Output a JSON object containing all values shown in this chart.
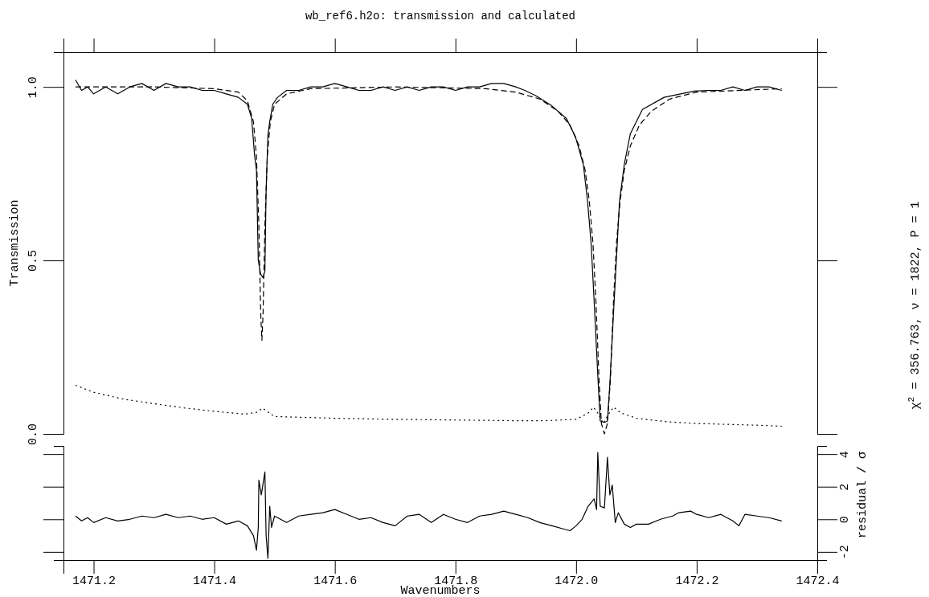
{
  "chart_data": [
    {
      "type": "line",
      "title": "wb_ref6.h2o: transmission and calculated",
      "ylabel": "Transmission",
      "tick_labels": "y",
      "xlim": [
        1471.15,
        1472.4
      ],
      "xticks": [
        {
          "value": 1471.2,
          "label": null
        },
        {
          "value": 1471.4,
          "label": null
        },
        {
          "value": 1471.6,
          "label": null
        },
        {
          "value": 1471.8,
          "label": null
        },
        {
          "value": 1472,
          "label": null
        },
        {
          "value": 1472.2,
          "label": null
        },
        {
          "value": 1472.4,
          "label": null
        }
      ],
      "ylim": [
        0,
        1.1
      ],
      "yticks": [
        {
          "value": 0,
          "label": "0.0"
        },
        {
          "value": 0.5,
          "label": "0.5"
        },
        {
          "value": 1,
          "label": "1.0"
        }
      ],
      "annotations": [
        "χ$^{2}$ = 356.763, ν = 1822, P = 1"
      ],
      "series": [
        {
          "color": "#000000",
          "line_style": "solid",
          "x": [
            1471.17,
            1471.18,
            1471.19,
            1471.2,
            1471.22,
            1471.24,
            1471.26,
            1471.28,
            1471.3,
            1471.32,
            1471.34,
            1471.36,
            1471.38,
            1471.4,
            1471.42,
            1471.44,
            1471.455,
            1471.462,
            1471.467,
            1471.47,
            1471.473,
            1471.477,
            1471.481,
            1471.484,
            1471.486,
            1471.489,
            1471.492,
            1471.497,
            1471.505,
            1471.52,
            1471.54,
            1471.56,
            1471.58,
            1471.6,
            1471.62,
            1471.64,
            1471.66,
            1471.68,
            1471.7,
            1471.72,
            1471.74,
            1471.76,
            1471.78,
            1471.8,
            1471.82,
            1471.84,
            1471.86,
            1471.88,
            1471.9,
            1471.915,
            1471.933,
            1471.958,
            1471.984,
            1471.999,
            1472.012,
            1472.019,
            1472.025,
            1472.03,
            1472.036,
            1472.04,
            1472.047,
            1472.052,
            1472.056,
            1472.062,
            1472.068,
            1472.072,
            1472.08,
            1472.09,
            1472.11,
            1472.146,
            1472.196,
            1472.22,
            1472.24,
            1472.26,
            1472.28,
            1472.3,
            1472.32,
            1472.341
          ],
          "values": [
            1.02,
            0.99,
            1.0,
            0.98,
            1.0,
            0.98,
            1.0,
            1.01,
            0.99,
            1.01,
            1.0,
            1.0,
            0.99,
            0.99,
            0.98,
            0.97,
            0.95,
            0.91,
            0.8,
            0.76,
            0.5,
            0.46,
            0.45,
            0.47,
            0.7,
            0.86,
            0.9,
            0.95,
            0.97,
            0.99,
            0.99,
            1.0,
            1.0,
            1.01,
            1.0,
            0.99,
            0.99,
            1.0,
            0.99,
            1.0,
            0.99,
            1.0,
            1.0,
            0.99,
            1.0,
            1.0,
            1.01,
            1.01,
            1.0,
            0.99,
            0.975,
            0.948,
            0.909,
            0.856,
            0.777,
            0.671,
            0.548,
            0.381,
            0.169,
            0.037,
            0.033,
            0.037,
            0.143,
            0.345,
            0.539,
            0.671,
            0.777,
            0.865,
            0.935,
            0.97,
            0.988,
            0.99,
            0.99,
            1.0,
            0.99,
            1.0,
            1.0,
            0.99
          ]
        },
        {
          "color": "#000000",
          "line_style": "dashed",
          "x": [
            1471.17,
            1471.3,
            1471.4,
            1471.44,
            1471.455,
            1471.465,
            1471.47,
            1471.474,
            1471.477,
            1471.479,
            1471.481,
            1471.484,
            1471.488,
            1471.493,
            1471.5,
            1471.52,
            1471.56,
            1471.7,
            1471.85,
            1471.9,
            1471.94,
            1471.97,
            1471.99,
            1472.005,
            1472.015,
            1472.022,
            1472.028,
            1472.033,
            1472.038,
            1472.042,
            1472.047,
            1472.052,
            1472.057,
            1472.062,
            1472.067,
            1472.073,
            1472.08,
            1472.09,
            1472.105,
            1472.125,
            1472.155,
            1472.2,
            1472.341
          ],
          "values": [
            1.0,
            1.0,
            0.995,
            0.985,
            0.96,
            0.9,
            0.8,
            0.6,
            0.35,
            0.27,
            0.35,
            0.6,
            0.8,
            0.9,
            0.95,
            0.98,
            0.995,
            1.0,
            0.995,
            0.985,
            0.965,
            0.93,
            0.89,
            0.83,
            0.76,
            0.67,
            0.55,
            0.38,
            0.16,
            0.03,
            0.0,
            0.03,
            0.16,
            0.38,
            0.55,
            0.67,
            0.76,
            0.83,
            0.89,
            0.93,
            0.965,
            0.985,
            0.995
          ]
        },
        {
          "color": "#000000",
          "line_style": "dotted",
          "x": [
            1471.17,
            1471.2,
            1471.25,
            1471.3,
            1471.35,
            1471.4,
            1471.45,
            1471.47,
            1471.48,
            1471.49,
            1471.5,
            1471.6,
            1471.7,
            1471.8,
            1471.9,
            1471.95,
            1472.0,
            1472.02,
            1472.029,
            1472.036,
            1472.045,
            1472.055,
            1472.062,
            1472.075,
            1472.1,
            1472.15,
            1472.2,
            1472.3,
            1472.341
          ],
          "values": [
            0.14,
            0.12,
            0.1,
            0.087,
            0.075,
            0.065,
            0.057,
            0.062,
            0.074,
            0.062,
            0.05,
            0.045,
            0.042,
            0.04,
            0.038,
            0.038,
            0.042,
            0.06,
            0.077,
            0.06,
            0.03,
            0.06,
            0.077,
            0.06,
            0.045,
            0.035,
            0.03,
            0.025,
            0.022
          ]
        }
      ]
    },
    {
      "type": "line",
      "xlabel": "Wavenumbers",
      "y2label": "residual / σ",
      "xlim": [
        1471.15,
        1472.4
      ],
      "xticks": [
        1471.2,
        1471.4,
        1471.6,
        1471.8,
        {
          "value": 1472,
          "label": "1472.0"
        },
        1472.2,
        1472.4
      ],
      "y2lim": [
        -2.5,
        4.5
      ],
      "y2ticks": [
        -2,
        0,
        2,
        4
      ],
      "series": [
        {
          "color": "#000000",
          "line_style": "solid",
          "axis": "y2",
          "x": [
            1471.17,
            1471.18,
            1471.19,
            1471.2,
            1471.22,
            1471.24,
            1471.26,
            1471.28,
            1471.3,
            1471.32,
            1471.34,
            1471.36,
            1471.38,
            1471.4,
            1471.42,
            1471.44,
            1471.455,
            1471.465,
            1471.47,
            1471.473,
            1471.474,
            1471.478,
            1471.484,
            1471.486,
            1471.489,
            1471.492,
            1471.495,
            1471.5,
            1471.52,
            1471.54,
            1471.56,
            1471.58,
            1471.6,
            1471.62,
            1471.64,
            1471.66,
            1471.68,
            1471.7,
            1471.72,
            1471.74,
            1471.76,
            1471.78,
            1471.8,
            1471.82,
            1471.84,
            1471.86,
            1471.88,
            1471.9,
            1471.92,
            1471.94,
            1471.96,
            1471.98,
            1471.99,
            1472.0,
            1472.01,
            1472.02,
            1472.03,
            1472.034,
            1472.036,
            1472.04,
            1472.047,
            1472.052,
            1472.056,
            1472.06,
            1472.065,
            1472.07,
            1472.08,
            1472.09,
            1472.1,
            1472.12,
            1472.14,
            1472.16,
            1472.17,
            1472.19,
            1472.2,
            1472.22,
            1472.24,
            1472.26,
            1472.27,
            1472.28,
            1472.3,
            1472.32,
            1472.341
          ],
          "values": [
            0.2,
            -0.1,
            0.1,
            -0.2,
            0.1,
            -0.1,
            0.0,
            0.2,
            0.1,
            0.3,
            0.1,
            0.2,
            0.0,
            0.1,
            -0.3,
            -0.1,
            -0.4,
            -1.0,
            -1.9,
            -0.5,
            2.4,
            1.5,
            2.9,
            -1.0,
            -2.4,
            0.8,
            -0.5,
            0.2,
            -0.2,
            0.2,
            0.3,
            0.4,
            0.6,
            0.3,
            0.0,
            0.1,
            -0.2,
            -0.4,
            0.2,
            0.3,
            -0.2,
            0.3,
            0.0,
            -0.2,
            0.2,
            0.3,
            0.5,
            0.3,
            0.1,
            -0.2,
            -0.4,
            -0.6,
            -0.7,
            -0.4,
            0.0,
            0.8,
            1.25,
            0.6,
            4.1,
            0.8,
            0.7,
            3.8,
            1.5,
            2.1,
            -0.2,
            0.4,
            -0.3,
            -0.5,
            -0.3,
            -0.3,
            0.0,
            0.2,
            0.4,
            0.5,
            0.3,
            0.1,
            0.3,
            -0.1,
            -0.4,
            0.3,
            0.2,
            0.1,
            -0.1
          ]
        }
      ]
    }
  ]
}
